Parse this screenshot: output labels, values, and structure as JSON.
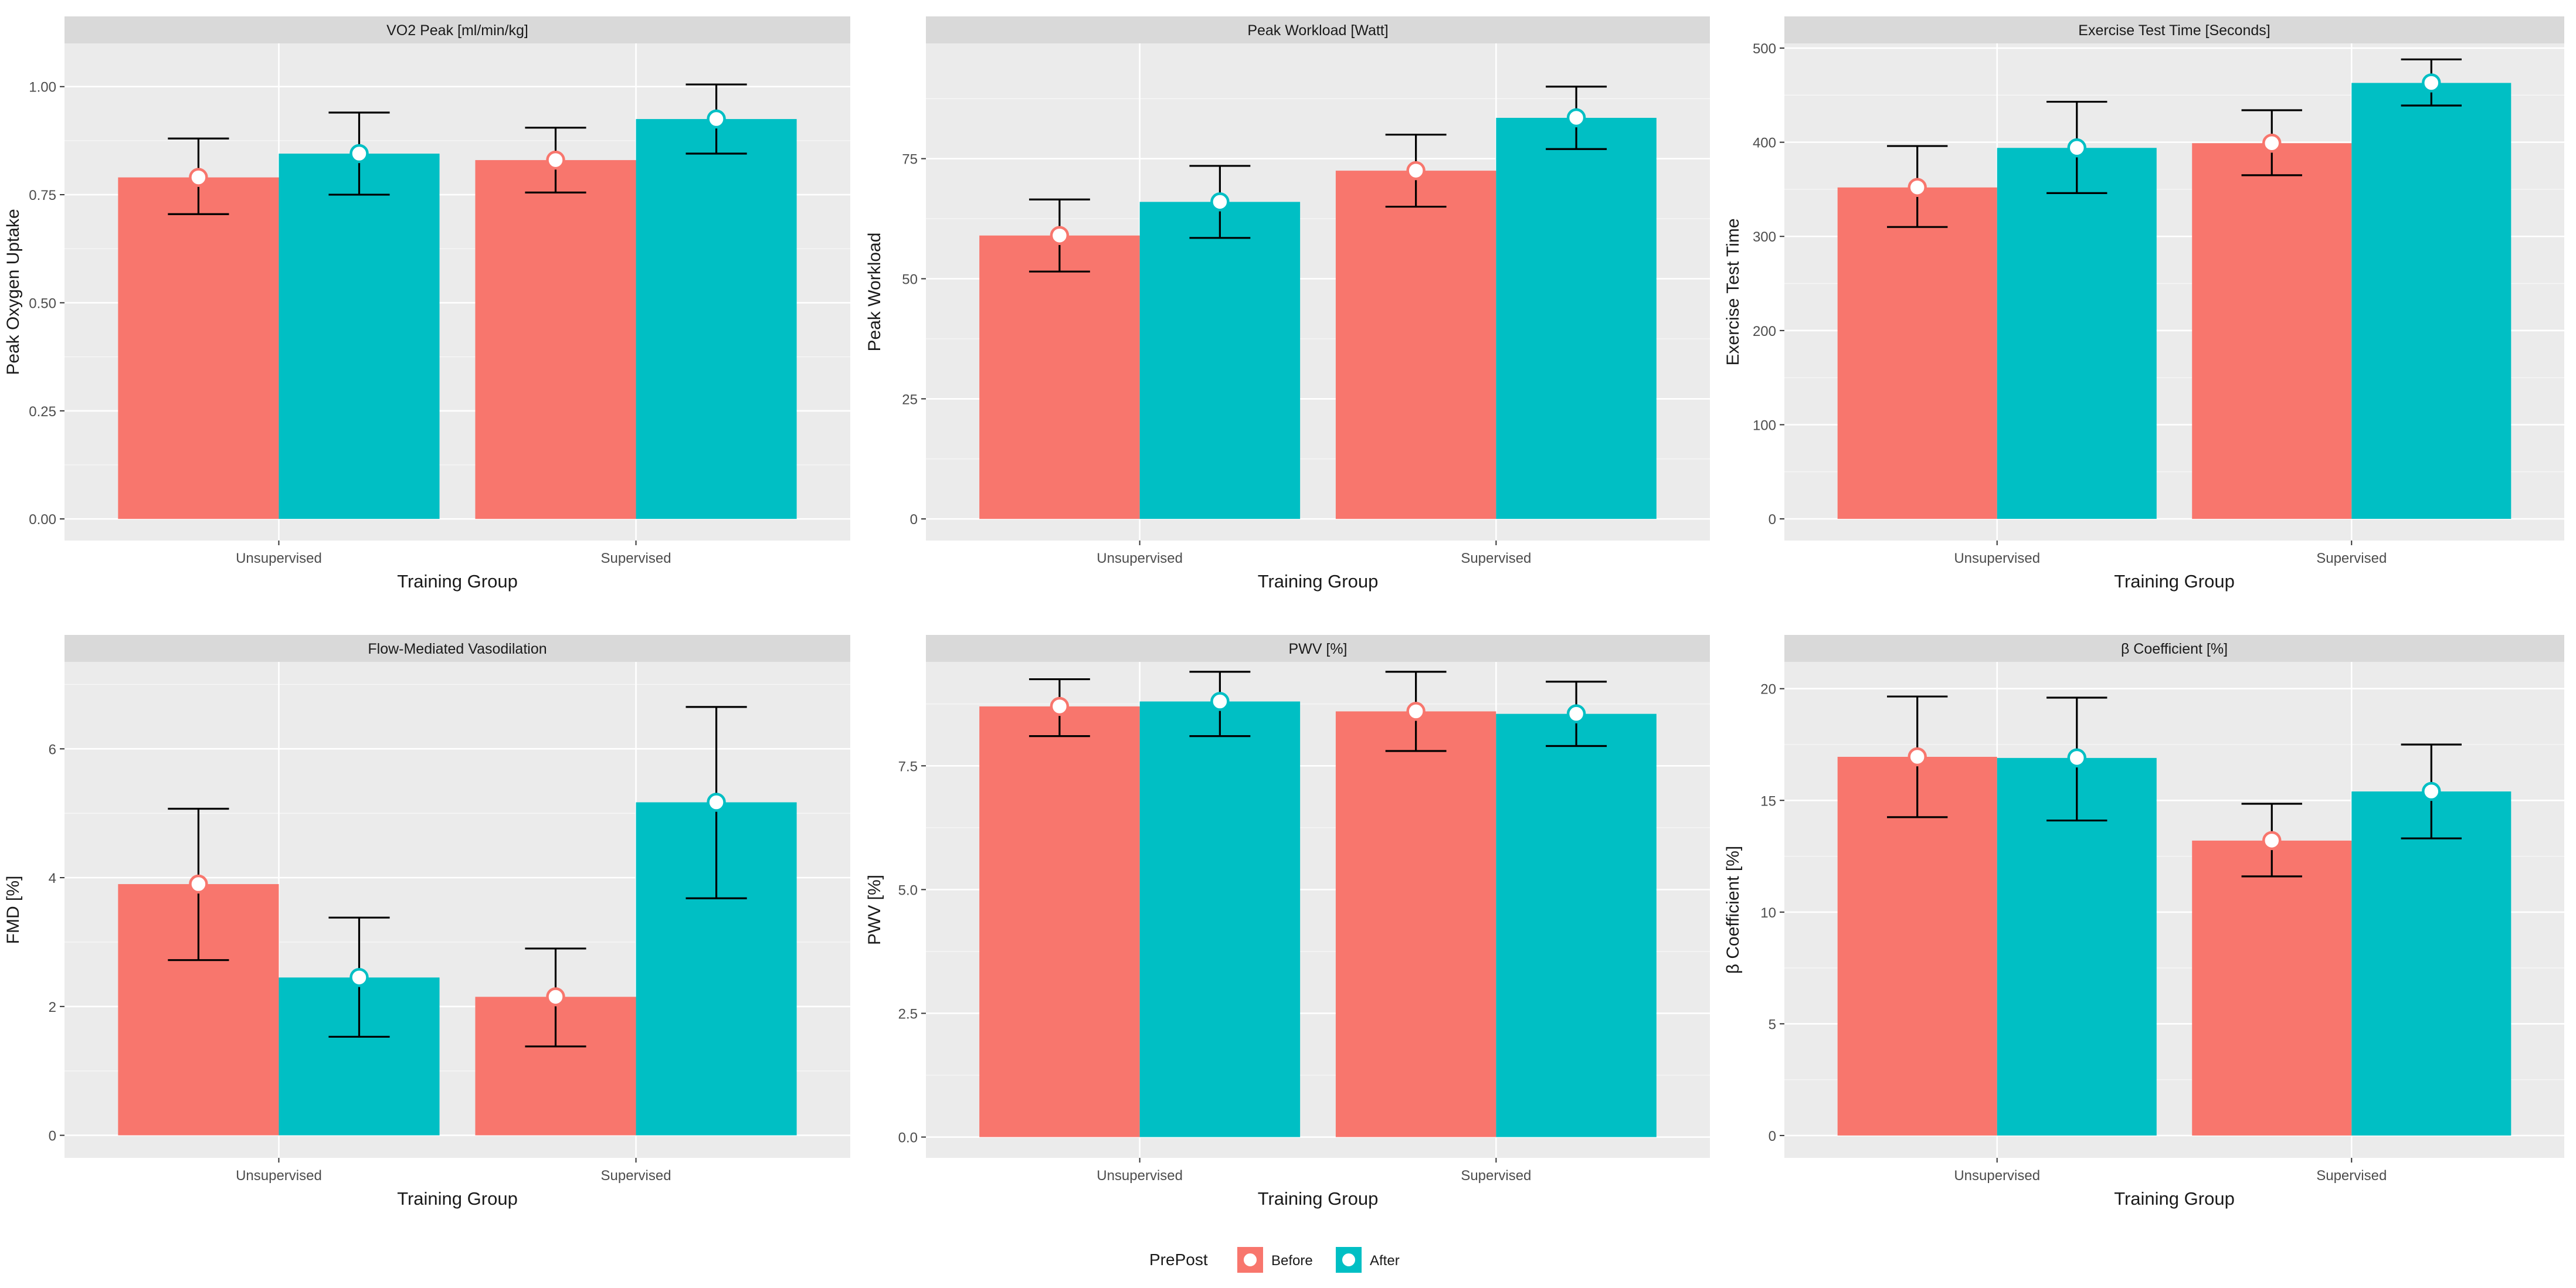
{
  "colors": {
    "before": "#F8766D",
    "after": "#00BFC4",
    "panel_bg": "#EBEBEB",
    "strip_bg": "#D9D9D9",
    "grid": "#FFFFFF",
    "axis_text": "#4D4D4D",
    "title_text": "#1A1A1A"
  },
  "legend": {
    "title": "PrePost",
    "items": [
      {
        "label": "Before",
        "color": "#F8766D"
      },
      {
        "label": "After",
        "color": "#00BFC4"
      }
    ]
  },
  "chart_data": [
    {
      "type": "bar",
      "title": "VO2 Peak [ml/min/kg]",
      "xlabel": "Training Group",
      "ylabel": "Peak Oxygen Uptake",
      "categories": [
        "Unsupervised",
        "Supervised"
      ],
      "ylim": [
        -0.05,
        1.1
      ],
      "yticks": [
        0,
        0.25,
        0.5,
        0.75,
        1.0
      ],
      "ytick_labels": [
        "0.00",
        "0.25",
        "0.50",
        "0.75",
        "1.00"
      ],
      "series": [
        {
          "name": "Before",
          "values": [
            0.79,
            0.83
          ],
          "err_low": [
            0.705,
            0.755
          ],
          "err_high": [
            0.88,
            0.905
          ]
        },
        {
          "name": "After",
          "values": [
            0.845,
            0.925
          ],
          "err_low": [
            0.75,
            0.845
          ],
          "err_high": [
            0.94,
            1.005
          ]
        }
      ]
    },
    {
      "type": "bar",
      "title": "Peak Workload [Watt]",
      "xlabel": "Training Group",
      "ylabel": "Peak Workload",
      "categories": [
        "Unsupervised",
        "Supervised"
      ],
      "ylim": [
        -4.5,
        99
      ],
      "yticks": [
        0,
        25,
        50,
        75
      ],
      "ytick_labels": [
        "0",
        "25",
        "50",
        "75"
      ],
      "series": [
        {
          "name": "Before",
          "values": [
            59,
            72.5
          ],
          "err_low": [
            51.5,
            65
          ],
          "err_high": [
            66.5,
            80
          ]
        },
        {
          "name": "After",
          "values": [
            66,
            83.5
          ],
          "err_low": [
            58.5,
            77
          ],
          "err_high": [
            73.5,
            90
          ]
        }
      ]
    },
    {
      "type": "bar",
      "title": "Exercise Test Time [Seconds]",
      "xlabel": "Training Group",
      "ylabel": "Exercise Test Time",
      "categories": [
        "Unsupervised",
        "Supervised"
      ],
      "ylim": [
        -23,
        505
      ],
      "yticks": [
        0,
        100,
        200,
        300,
        400,
        500
      ],
      "ytick_labels": [
        "0",
        "100",
        "200",
        "300",
        "400",
        "500"
      ],
      "series": [
        {
          "name": "Before",
          "values": [
            352,
            399
          ],
          "err_low": [
            310,
            365
          ],
          "err_high": [
            396,
            434
          ]
        },
        {
          "name": "After",
          "values": [
            394,
            463
          ],
          "err_low": [
            346,
            439
          ],
          "err_high": [
            443,
            488
          ]
        }
      ]
    },
    {
      "type": "bar",
      "title": "Flow-Mediated Vasodilation",
      "xlabel": "Training Group",
      "ylabel": "FMD [%]",
      "categories": [
        "Unsupervised",
        "Supervised"
      ],
      "ylim": [
        -0.35,
        7.35
      ],
      "yticks": [
        0,
        2,
        4,
        6
      ],
      "ytick_labels": [
        "0",
        "2",
        "4",
        "6"
      ],
      "series": [
        {
          "name": "Before",
          "values": [
            3.9,
            2.15
          ],
          "err_low": [
            2.72,
            1.38
          ],
          "err_high": [
            5.07,
            2.9
          ]
        },
        {
          "name": "After",
          "values": [
            2.45,
            5.17
          ],
          "err_low": [
            1.53,
            3.68
          ],
          "err_high": [
            3.38,
            6.65
          ]
        }
      ]
    },
    {
      "type": "bar",
      "title": "PWV [%]",
      "xlabel": "Training Group",
      "ylabel": "PWV [%]",
      "categories": [
        "Unsupervised",
        "Supervised"
      ],
      "ylim": [
        -0.42,
        9.6
      ],
      "yticks": [
        0,
        2.5,
        5,
        7.5
      ],
      "ytick_labels": [
        "0.0",
        "2.5",
        "5.0",
        "7.5"
      ],
      "series": [
        {
          "name": "Before",
          "values": [
            8.7,
            8.6
          ],
          "err_low": [
            8.1,
            7.8
          ],
          "err_high": [
            9.25,
            9.4
          ]
        },
        {
          "name": "After",
          "values": [
            8.8,
            8.55
          ],
          "err_low": [
            8.1,
            7.9
          ],
          "err_high": [
            9.4,
            9.2
          ]
        }
      ]
    },
    {
      "type": "bar",
      "title": "β Coefficient [%]",
      "xlabel": "Training Group",
      "ylabel": "β Coefficient [%]",
      "categories": [
        "Unsupervised",
        "Supervised"
      ],
      "ylim": [
        -1.0,
        21.2
      ],
      "yticks": [
        0,
        5,
        10,
        15,
        20
      ],
      "ytick_labels": [
        "0",
        "5",
        "10",
        "15",
        "20"
      ],
      "series": [
        {
          "name": "Before",
          "values": [
            16.95,
            13.2
          ],
          "err_low": [
            14.25,
            11.6
          ],
          "err_high": [
            19.65,
            14.85
          ]
        },
        {
          "name": "After",
          "values": [
            16.9,
            15.4
          ],
          "err_low": [
            14.1,
            13.3
          ],
          "err_high": [
            19.6,
            17.5
          ]
        }
      ]
    }
  ]
}
